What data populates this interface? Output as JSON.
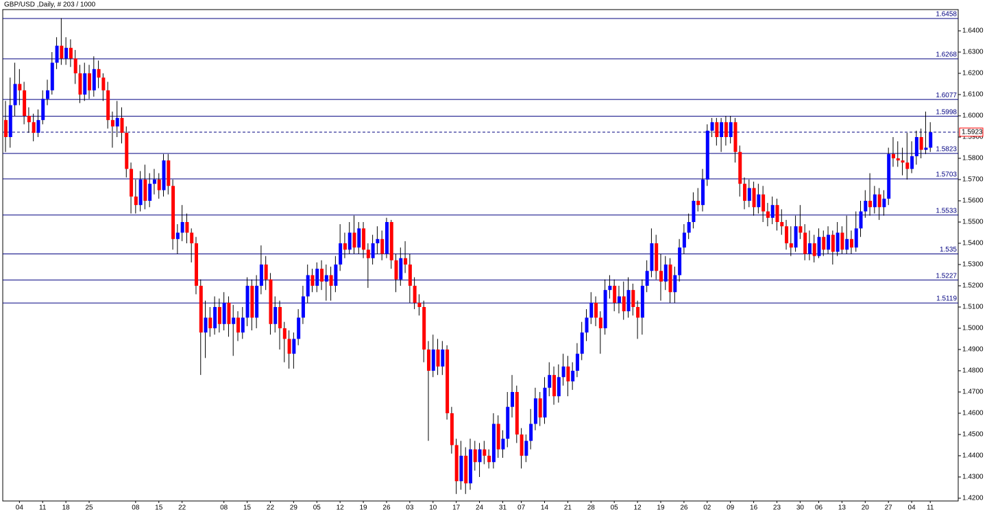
{
  "chart_data": {
    "type": "candlestick",
    "title": "GBP/USD ,Daily, # 203 / 1000",
    "up_color": "#0000ff",
    "down_color": "#ff0000",
    "wick_color": "#000000",
    "level_color": "#000080",
    "ylim": [
      1.4187,
      1.65
    ],
    "yticks": [
      {
        "value": 1.42,
        "label": "1.4200"
      },
      {
        "value": 1.43,
        "label": "1.4300"
      },
      {
        "value": 1.44,
        "label": "1.4400"
      },
      {
        "value": 1.45,
        "label": "1.4500"
      },
      {
        "value": 1.46,
        "label": "1.4600"
      },
      {
        "value": 1.47,
        "label": "1.4700"
      },
      {
        "value": 1.48,
        "label": "1.4800"
      },
      {
        "value": 1.49,
        "label": "1.4900"
      },
      {
        "value": 1.5,
        "label": "1.5000"
      },
      {
        "value": 1.51,
        "label": "1.5100"
      },
      {
        "value": 1.52,
        "label": "1.5200"
      },
      {
        "value": 1.53,
        "label": "1.5300"
      },
      {
        "value": 1.54,
        "label": "1.5400"
      },
      {
        "value": 1.55,
        "label": "1.5500"
      },
      {
        "value": 1.56,
        "label": "1.5600"
      },
      {
        "value": 1.57,
        "label": "1.5700"
      },
      {
        "value": 1.58,
        "label": "1.5800"
      },
      {
        "value": 1.59,
        "label": "1.5900"
      },
      {
        "value": 1.6,
        "label": "1.6000"
      },
      {
        "value": 1.61,
        "label": "1.6100"
      },
      {
        "value": 1.62,
        "label": "1.6200"
      },
      {
        "value": 1.63,
        "label": "1.6300"
      },
      {
        "value": 1.64,
        "label": "1.6400"
      }
    ],
    "levels": [
      1.6458,
      1.6268,
      1.6077,
      1.5998,
      1.5823,
      1.5703,
      1.5533,
      1.535,
      1.5227,
      1.5119
    ],
    "current_price": 1.5923,
    "categories": [
      null,
      null,
      null,
      "04",
      null,
      null,
      null,
      null,
      "11",
      null,
      null,
      null,
      null,
      "18",
      null,
      null,
      null,
      null,
      "25",
      null,
      null,
      null,
      null,
      null,
      null,
      null,
      null,
      null,
      "08",
      null,
      null,
      null,
      null,
      "15",
      null,
      null,
      null,
      null,
      "22",
      null,
      null,
      null,
      null,
      null,
      null,
      null,
      null,
      "08",
      null,
      null,
      null,
      null,
      "15",
      null,
      null,
      null,
      null,
      "22",
      null,
      null,
      null,
      null,
      "29",
      null,
      null,
      null,
      null,
      "05",
      null,
      null,
      null,
      null,
      "12",
      null,
      null,
      null,
      null,
      "19",
      null,
      null,
      null,
      null,
      "26",
      null,
      null,
      null,
      null,
      "03",
      null,
      null,
      null,
      null,
      "10",
      null,
      null,
      null,
      null,
      "17",
      null,
      null,
      null,
      null,
      "24",
      null,
      null,
      null,
      null,
      "31",
      null,
      null,
      null,
      "07",
      null,
      null,
      null,
      null,
      "14",
      null,
      null,
      null,
      null,
      "21",
      null,
      null,
      null,
      null,
      "28",
      null,
      null,
      null,
      null,
      "05",
      null,
      null,
      null,
      null,
      "12",
      null,
      null,
      null,
      null,
      "19",
      null,
      null,
      null,
      null,
      "26",
      null,
      null,
      null,
      null,
      "02",
      null,
      null,
      null,
      null,
      "09",
      null,
      null,
      null,
      null,
      "16",
      null,
      null,
      null,
      null,
      "23",
      null,
      null,
      null,
      null,
      "30",
      null,
      null,
      null,
      "06",
      null,
      null,
      null,
      null,
      "13",
      null,
      null,
      null,
      null,
      "20",
      null,
      null,
      null,
      null,
      "27",
      null,
      null,
      null,
      null,
      "04",
      null,
      null,
      null,
      "11"
    ],
    "candles": [
      [
        1.598,
        1.607,
        1.583,
        1.59
      ],
      [
        1.59,
        1.618,
        1.585,
        1.605
      ],
      [
        1.605,
        1.625,
        1.6,
        1.615
      ],
      [
        1.615,
        1.622,
        1.605,
        1.612
      ],
      [
        1.612,
        1.616,
        1.596,
        1.6
      ],
      [
        1.6,
        1.604,
        1.592,
        1.597
      ],
      [
        1.597,
        1.601,
        1.588,
        1.592
      ],
      [
        1.592,
        1.603,
        1.59,
        1.598
      ],
      [
        1.598,
        1.612,
        1.596,
        1.608
      ],
      [
        1.608,
        1.617,
        1.605,
        1.612
      ],
      [
        1.612,
        1.63,
        1.61,
        1.625
      ],
      [
        1.625,
        1.637,
        1.622,
        1.633
      ],
      [
        1.633,
        1.646,
        1.624,
        1.627
      ],
      [
        1.627,
        1.637,
        1.624,
        1.632
      ],
      [
        1.632,
        1.636,
        1.623,
        1.627
      ],
      [
        1.627,
        1.631,
        1.615,
        1.62
      ],
      [
        1.62,
        1.624,
        1.606,
        1.61
      ],
      [
        1.61,
        1.625,
        1.607,
        1.62
      ],
      [
        1.62,
        1.624,
        1.608,
        1.612
      ],
      [
        1.612,
        1.628,
        1.609,
        1.622
      ],
      [
        1.622,
        1.626,
        1.613,
        1.618
      ],
      [
        1.618,
        1.62,
        1.607,
        1.612
      ],
      [
        1.612,
        1.616,
        1.594,
        1.598
      ],
      [
        1.598,
        1.602,
        1.585,
        1.595
      ],
      [
        1.595,
        1.607,
        1.59,
        1.599
      ],
      [
        1.599,
        1.604,
        1.587,
        1.592
      ],
      [
        1.592,
        1.595,
        1.571,
        1.575
      ],
      [
        1.575,
        1.578,
        1.554,
        1.562
      ],
      [
        1.562,
        1.57,
        1.554,
        1.558
      ],
      [
        1.558,
        1.574,
        1.555,
        1.57
      ],
      [
        1.57,
        1.577,
        1.556,
        1.56
      ],
      [
        1.56,
        1.573,
        1.557,
        1.568
      ],
      [
        1.568,
        1.575,
        1.563,
        1.57
      ],
      [
        1.57,
        1.573,
        1.561,
        1.565
      ],
      [
        1.565,
        1.582,
        1.562,
        1.579
      ],
      [
        1.579,
        1.582,
        1.563,
        1.567
      ],
      [
        1.567,
        1.57,
        1.537,
        1.542
      ],
      [
        1.542,
        1.549,
        1.535,
        1.545
      ],
      [
        1.545,
        1.558,
        1.541,
        1.55
      ],
      [
        1.55,
        1.554,
        1.54,
        1.545
      ],
      [
        1.545,
        1.547,
        1.531,
        1.54
      ],
      [
        1.54,
        1.543,
        1.516,
        1.52
      ],
      [
        1.52,
        1.523,
        1.478,
        1.498
      ],
      [
        1.498,
        1.513,
        1.486,
        1.505
      ],
      [
        1.505,
        1.51,
        1.496,
        1.5
      ],
      [
        1.5,
        1.515,
        1.497,
        1.51
      ],
      [
        1.51,
        1.514,
        1.498,
        1.502
      ],
      [
        1.502,
        1.517,
        1.499,
        1.512
      ],
      [
        1.512,
        1.515,
        1.496,
        1.502
      ],
      [
        1.502,
        1.511,
        1.487,
        1.505
      ],
      [
        1.505,
        1.508,
        1.494,
        1.498
      ],
      [
        1.498,
        1.51,
        1.495,
        1.505
      ],
      [
        1.505,
        1.524,
        1.501,
        1.52
      ],
      [
        1.52,
        1.523,
        1.499,
        1.505
      ],
      [
        1.505,
        1.525,
        1.5,
        1.52
      ],
      [
        1.52,
        1.539,
        1.516,
        1.53
      ],
      [
        1.53,
        1.534,
        1.518,
        1.523
      ],
      [
        1.523,
        1.526,
        1.497,
        1.502
      ],
      [
        1.502,
        1.515,
        1.498,
        1.51
      ],
      [
        1.51,
        1.513,
        1.49,
        1.5
      ],
      [
        1.5,
        1.503,
        1.484,
        1.495
      ],
      [
        1.495,
        1.499,
        1.481,
        1.488
      ],
      [
        1.488,
        1.498,
        1.481,
        1.495
      ],
      [
        1.495,
        1.509,
        1.492,
        1.505
      ],
      [
        1.505,
        1.52,
        1.502,
        1.515
      ],
      [
        1.515,
        1.53,
        1.512,
        1.525
      ],
      [
        1.525,
        1.528,
        1.517,
        1.52
      ],
      [
        1.52,
        1.531,
        1.517,
        1.528
      ],
      [
        1.528,
        1.532,
        1.518,
        1.522
      ],
      [
        1.522,
        1.53,
        1.513,
        1.525
      ],
      [
        1.525,
        1.529,
        1.513,
        1.52
      ],
      [
        1.52,
        1.534,
        1.517,
        1.53
      ],
      [
        1.53,
        1.549,
        1.527,
        1.54
      ],
      [
        1.54,
        1.545,
        1.533,
        1.537
      ],
      [
        1.537,
        1.55,
        1.535,
        1.545
      ],
      [
        1.545,
        1.553,
        1.535,
        1.538
      ],
      [
        1.538,
        1.55,
        1.535,
        1.547
      ],
      [
        1.547,
        1.55,
        1.533,
        1.537
      ],
      [
        1.537,
        1.54,
        1.519,
        1.533
      ],
      [
        1.533,
        1.544,
        1.53,
        1.54
      ],
      [
        1.54,
        1.548,
        1.535,
        1.542
      ],
      [
        1.542,
        1.546,
        1.532,
        1.535
      ],
      [
        1.535,
        1.552,
        1.533,
        1.55
      ],
      [
        1.55,
        1.551,
        1.528,
        1.532
      ],
      [
        1.532,
        1.535,
        1.517,
        1.523
      ],
      [
        1.523,
        1.538,
        1.52,
        1.533
      ],
      [
        1.533,
        1.541,
        1.526,
        1.53
      ],
      [
        1.53,
        1.535,
        1.512,
        1.52
      ],
      [
        1.52,
        1.524,
        1.509,
        1.512
      ],
      [
        1.512,
        1.516,
        1.506,
        1.51
      ],
      [
        1.51,
        1.513,
        1.484,
        1.49
      ],
      [
        1.49,
        1.494,
        1.447,
        1.48
      ],
      [
        1.48,
        1.497,
        1.477,
        1.49
      ],
      [
        1.49,
        1.495,
        1.478,
        1.482
      ],
      [
        1.482,
        1.494,
        1.478,
        1.49
      ],
      [
        1.49,
        1.492,
        1.457,
        1.46
      ],
      [
        1.46,
        1.463,
        1.441,
        1.445
      ],
      [
        1.445,
        1.448,
        1.422,
        1.428
      ],
      [
        1.428,
        1.447,
        1.424,
        1.44
      ],
      [
        1.44,
        1.444,
        1.422,
        1.427
      ],
      [
        1.427,
        1.448,
        1.424,
        1.443
      ],
      [
        1.443,
        1.447,
        1.433,
        1.437
      ],
      [
        1.437,
        1.446,
        1.43,
        1.443
      ],
      [
        1.443,
        1.447,
        1.436,
        1.44
      ],
      [
        1.44,
        1.443,
        1.434,
        1.437
      ],
      [
        1.437,
        1.46,
        1.434,
        1.455
      ],
      [
        1.455,
        1.459,
        1.439,
        1.443
      ],
      [
        1.443,
        1.452,
        1.439,
        1.448
      ],
      [
        1.448,
        1.47,
        1.444,
        1.463
      ],
      [
        1.463,
        1.478,
        1.458,
        1.47
      ],
      [
        1.47,
        1.473,
        1.446,
        1.45
      ],
      [
        1.45,
        1.453,
        1.434,
        1.44
      ],
      [
        1.44,
        1.45,
        1.437,
        1.447
      ],
      [
        1.447,
        1.462,
        1.443,
        1.455
      ],
      [
        1.455,
        1.472,
        1.452,
        1.467
      ],
      [
        1.467,
        1.47,
        1.454,
        1.458
      ],
      [
        1.458,
        1.477,
        1.455,
        1.472
      ],
      [
        1.472,
        1.484,
        1.468,
        1.478
      ],
      [
        1.478,
        1.482,
        1.464,
        1.468
      ],
      [
        1.468,
        1.483,
        1.465,
        1.477
      ],
      [
        1.477,
        1.488,
        1.473,
        1.482
      ],
      [
        1.482,
        1.487,
        1.468,
        1.475
      ],
      [
        1.475,
        1.484,
        1.471,
        1.48
      ],
      [
        1.48,
        1.493,
        1.477,
        1.488
      ],
      [
        1.488,
        1.503,
        1.485,
        1.498
      ],
      [
        1.498,
        1.509,
        1.494,
        1.505
      ],
      [
        1.505,
        1.517,
        1.502,
        1.512
      ],
      [
        1.512,
        1.515,
        1.501,
        1.505
      ],
      [
        1.505,
        1.508,
        1.488,
        1.5
      ],
      [
        1.5,
        1.523,
        1.497,
        1.518
      ],
      [
        1.518,
        1.525,
        1.514,
        1.52
      ],
      [
        1.52,
        1.523,
        1.508,
        1.512
      ],
      [
        1.512,
        1.52,
        1.507,
        1.515
      ],
      [
        1.515,
        1.522,
        1.504,
        1.508
      ],
      [
        1.508,
        1.524,
        1.505,
        1.518
      ],
      [
        1.518,
        1.521,
        1.506,
        1.51
      ],
      [
        1.51,
        1.513,
        1.495,
        1.505
      ],
      [
        1.505,
        1.523,
        1.497,
        1.52
      ],
      [
        1.52,
        1.532,
        1.517,
        1.527
      ],
      [
        1.527,
        1.547,
        1.524,
        1.54
      ],
      [
        1.54,
        1.544,
        1.523,
        1.527
      ],
      [
        1.527,
        1.535,
        1.513,
        1.522
      ],
      [
        1.522,
        1.534,
        1.518,
        1.53
      ],
      [
        1.53,
        1.533,
        1.512,
        1.517
      ],
      [
        1.517,
        1.529,
        1.512,
        1.525
      ],
      [
        1.525,
        1.542,
        1.522,
        1.538
      ],
      [
        1.538,
        1.549,
        1.535,
        1.545
      ],
      [
        1.545,
        1.554,
        1.542,
        1.55
      ],
      [
        1.55,
        1.564,
        1.547,
        1.56
      ],
      [
        1.56,
        1.566,
        1.555,
        1.558
      ],
      [
        1.558,
        1.575,
        1.555,
        1.57
      ],
      [
        1.57,
        1.596,
        1.567,
        1.593
      ],
      [
        1.593,
        1.599,
        1.59,
        1.597
      ],
      [
        1.597,
        1.599,
        1.586,
        1.59
      ],
      [
        1.59,
        1.599,
        1.583,
        1.597
      ],
      [
        1.597,
        1.6,
        1.586,
        1.59
      ],
      [
        1.59,
        1.6,
        1.587,
        1.597
      ],
      [
        1.597,
        1.599,
        1.578,
        1.583
      ],
      [
        1.583,
        1.586,
        1.562,
        1.568
      ],
      [
        1.568,
        1.571,
        1.556,
        1.56
      ],
      [
        1.56,
        1.57,
        1.557,
        1.566
      ],
      [
        1.566,
        1.569,
        1.553,
        1.557
      ],
      [
        1.557,
        1.568,
        1.554,
        1.563
      ],
      [
        1.563,
        1.567,
        1.55,
        1.555
      ],
      [
        1.555,
        1.559,
        1.548,
        1.552
      ],
      [
        1.552,
        1.562,
        1.549,
        1.558
      ],
      [
        1.558,
        1.561,
        1.546,
        1.55
      ],
      [
        1.55,
        1.556,
        1.544,
        1.548
      ],
      [
        1.548,
        1.551,
        1.537,
        1.54
      ],
      [
        1.54,
        1.548,
        1.534,
        1.538
      ],
      [
        1.538,
        1.553,
        1.536,
        1.548
      ],
      [
        1.548,
        1.558,
        1.542,
        1.545
      ],
      [
        1.545,
        1.549,
        1.532,
        1.535
      ],
      [
        1.535,
        1.546,
        1.532,
        1.54
      ],
      [
        1.54,
        1.544,
        1.531,
        1.534
      ],
      [
        1.534,
        1.547,
        1.533,
        1.543
      ],
      [
        1.543,
        1.546,
        1.534,
        1.537
      ],
      [
        1.537,
        1.548,
        1.535,
        1.544
      ],
      [
        1.544,
        1.546,
        1.53,
        1.536
      ],
      [
        1.536,
        1.55,
        1.534,
        1.545
      ],
      [
        1.545,
        1.548,
        1.535,
        1.537
      ],
      [
        1.537,
        1.553,
        1.535,
        1.542
      ],
      [
        1.542,
        1.546,
        1.535,
        1.538
      ],
      [
        1.538,
        1.555,
        1.536,
        1.547
      ],
      [
        1.547,
        1.56,
        1.543,
        1.555
      ],
      [
        1.555,
        1.565,
        1.552,
        1.56
      ],
      [
        1.56,
        1.573,
        1.553,
        1.557
      ],
      [
        1.557,
        1.567,
        1.554,
        1.563
      ],
      [
        1.563,
        1.566,
        1.551,
        1.557
      ],
      [
        1.557,
        1.565,
        1.553,
        1.561
      ],
      [
        1.561,
        1.585,
        1.558,
        1.582
      ],
      [
        1.582,
        1.59,
        1.576,
        1.58
      ],
      [
        1.58,
        1.588,
        1.576,
        1.579
      ],
      [
        1.579,
        1.585,
        1.572,
        1.578
      ],
      [
        1.578,
        1.592,
        1.57,
        1.575
      ],
      [
        1.575,
        1.588,
        1.573,
        1.581
      ],
      [
        1.581,
        1.593,
        1.577,
        1.59
      ],
      [
        1.59,
        1.594,
        1.58,
        1.584
      ],
      [
        1.584,
        1.602,
        1.582,
        1.585
      ],
      [
        1.585,
        1.597,
        1.583,
        1.5923
      ]
    ]
  }
}
